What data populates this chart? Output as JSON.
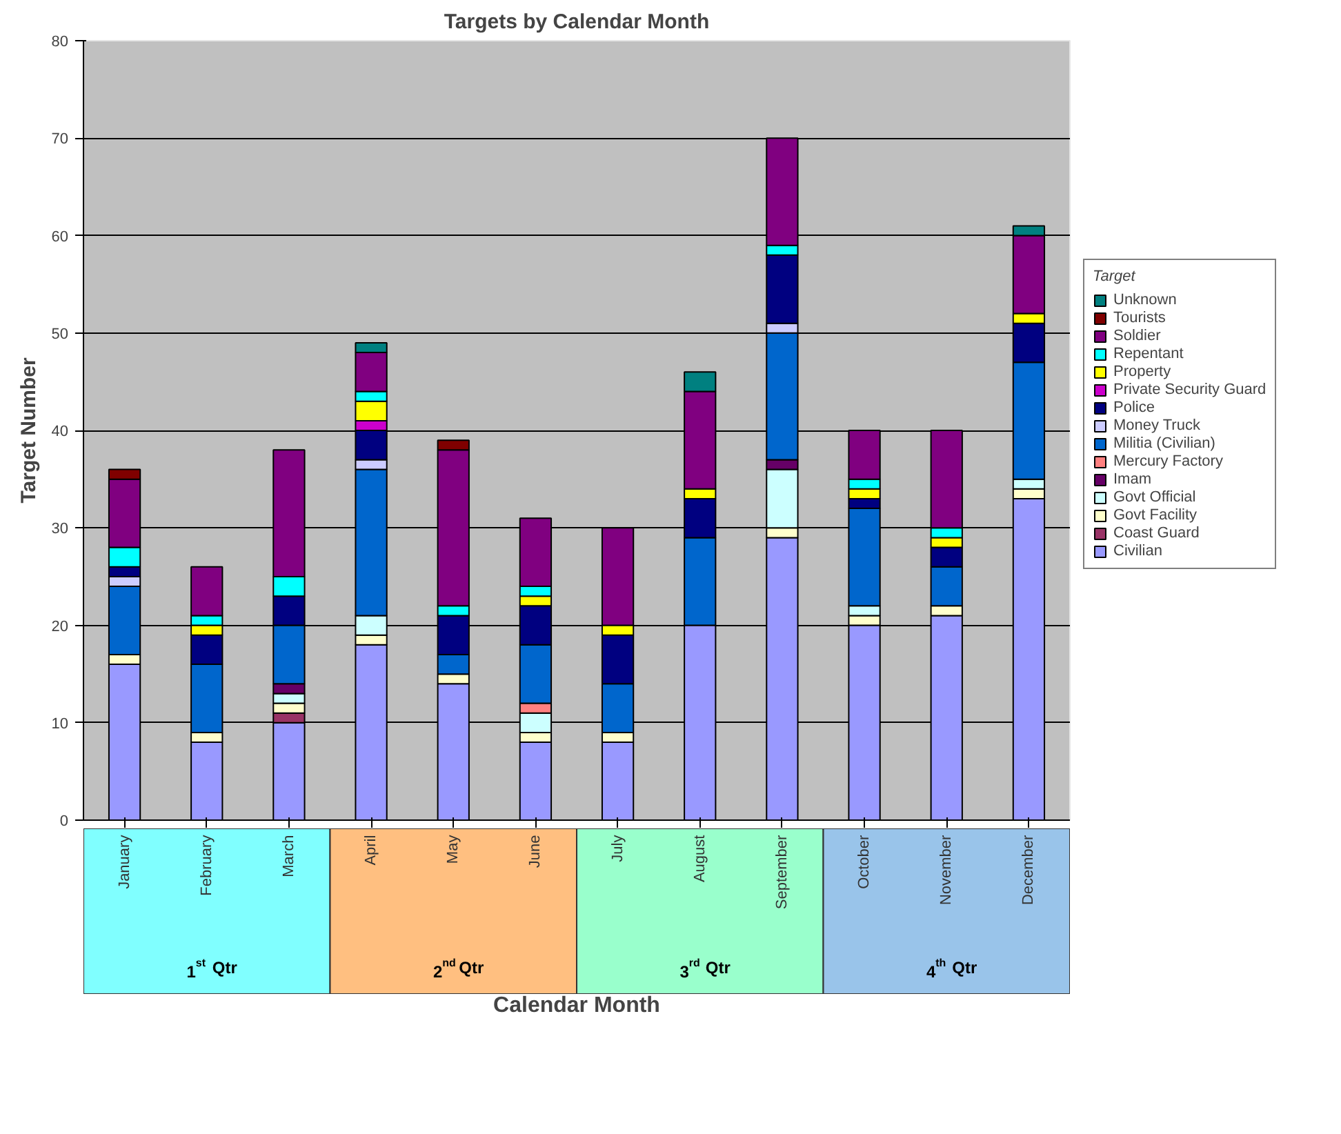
{
  "chart_data": {
    "type": "bar",
    "stacked": true,
    "title": "Targets by Calendar Month",
    "xlabel": "Calendar Month",
    "ylabel": "Target Number",
    "legend_title": "Target",
    "legend": "right",
    "grid": "y",
    "categories": [
      "January",
      "February",
      "March",
      "April",
      "May",
      "June",
      "July",
      "August",
      "September",
      "October",
      "November",
      "December"
    ],
    "ylim": [
      0,
      80
    ],
    "yticks": [
      0,
      10,
      20,
      30,
      40,
      50,
      60,
      70,
      80
    ],
    "series": [
      {
        "name": "Civilian",
        "color": "#9999ff",
        "values": [
          16,
          8,
          10,
          18,
          14,
          8,
          8,
          20,
          29,
          20,
          21,
          33
        ]
      },
      {
        "name": "Coast Guard",
        "color": "#993366",
        "values": [
          0,
          0,
          1,
          0,
          0,
          0,
          0,
          0,
          0,
          0,
          0,
          0
        ]
      },
      {
        "name": "Govt Facility",
        "color": "#ffffcc",
        "values": [
          1,
          1,
          1,
          1,
          1,
          1,
          1,
          0,
          1,
          1,
          1,
          1
        ]
      },
      {
        "name": "Govt Official",
        "color": "#ccffff",
        "values": [
          0,
          0,
          1,
          2,
          0,
          2,
          0,
          0,
          6,
          1,
          0,
          1
        ]
      },
      {
        "name": "Imam",
        "color": "#660066",
        "values": [
          0,
          0,
          1,
          0,
          0,
          0,
          0,
          0,
          1,
          0,
          0,
          0
        ]
      },
      {
        "name": "Mercury Factory",
        "color": "#ff8080",
        "values": [
          0,
          0,
          0,
          0,
          0,
          1,
          0,
          0,
          0,
          0,
          0,
          0
        ]
      },
      {
        "name": "Militia (Civilian)",
        "color": "#0066cc",
        "values": [
          7,
          7,
          6,
          15,
          2,
          6,
          5,
          9,
          13,
          10,
          4,
          12
        ]
      },
      {
        "name": "Money Truck",
        "color": "#ccccff",
        "values": [
          1,
          0,
          0,
          1,
          0,
          0,
          0,
          0,
          1,
          0,
          0,
          0
        ]
      },
      {
        "name": "Police",
        "color": "#000080",
        "values": [
          1,
          3,
          3,
          3,
          4,
          4,
          5,
          4,
          7,
          1,
          2,
          4
        ]
      },
      {
        "name": "Private Security Guard",
        "color": "#cc00cc",
        "values": [
          0,
          0,
          0,
          1,
          0,
          0,
          0,
          0,
          0,
          0,
          0,
          0
        ]
      },
      {
        "name": "Property",
        "color": "#ffff00",
        "values": [
          0,
          1,
          0,
          2,
          0,
          1,
          1,
          1,
          0,
          1,
          1,
          1
        ]
      },
      {
        "name": "Repentant",
        "color": "#00ffff",
        "values": [
          2,
          1,
          2,
          1,
          1,
          1,
          0,
          0,
          1,
          1,
          1,
          0
        ]
      },
      {
        "name": "Soldier",
        "color": "#800080",
        "values": [
          7,
          5,
          13,
          4,
          16,
          7,
          10,
          10,
          11,
          5,
          10,
          8
        ]
      },
      {
        "name": "Tourists",
        "color": "#800000",
        "values": [
          1,
          0,
          0,
          0,
          1,
          0,
          0,
          0,
          0,
          0,
          0,
          0
        ]
      },
      {
        "name": "Unknown",
        "color": "#008080",
        "values": [
          0,
          0,
          0,
          1,
          0,
          0,
          0,
          2,
          0,
          0,
          0,
          1
        ]
      }
    ],
    "annotations": [
      "1$^{st}$ Qtr",
      "2$^{nd}$ Qtr",
      "3$^{rd}$ Qtr",
      "4$^{th}$ Qtr"
    ]
  }
}
